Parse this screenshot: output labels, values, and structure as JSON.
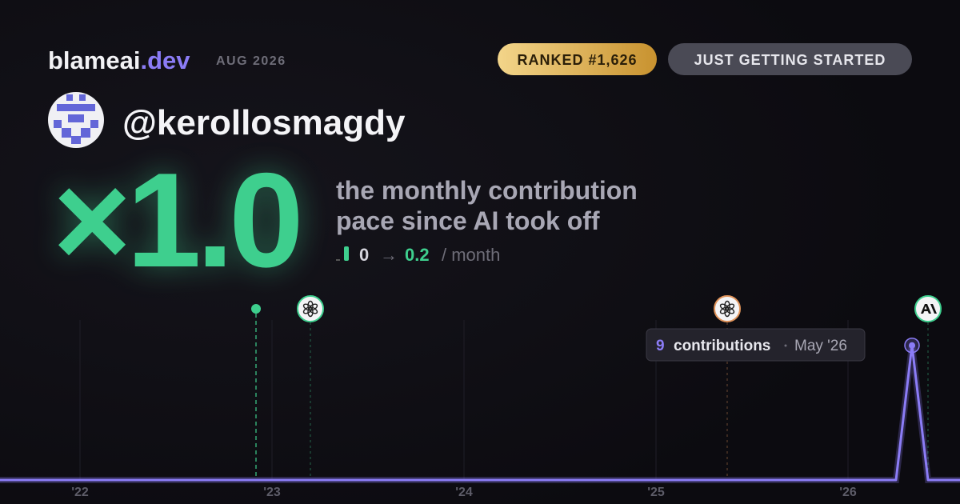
{
  "header": {
    "brand": "blameai",
    "brand_tld": ".dev",
    "period": "AUG 2026",
    "rank_badge": "RANKED #1,626",
    "status_badge": "JUST GETTING STARTED"
  },
  "profile": {
    "username": "@kerollosmagdy"
  },
  "stats": {
    "multiplier": "×1.0",
    "description_lines": [
      "the monthly contribution",
      "pace since AI took off"
    ],
    "before": "0",
    "arrow": "→",
    "after": "0.2",
    "unit": "/ month"
  },
  "chart_data": {
    "type": "line",
    "x": [
      -5,
      51,
      52,
      53,
      55
    ],
    "xlim": [
      -5,
      55
    ],
    "xticks": [
      {
        "value": 0,
        "label": "'22"
      },
      {
        "value": 12,
        "label": "'23"
      },
      {
        "value": 24,
        "label": "'24"
      },
      {
        "value": 36,
        "label": "'25"
      },
      {
        "value": 48,
        "label": "'26"
      }
    ],
    "ylim": [
      0,
      10
    ],
    "series": [
      {
        "color": "#8b7cf6",
        "values": [
          0,
          0,
          9,
          0,
          0
        ]
      }
    ],
    "events": [
      {
        "x": 11,
        "color": "#3ecf8e"
      },
      {
        "x": 14.4,
        "color": "#3ecf8e"
      },
      {
        "x": 40.45,
        "color": "#e0935a"
      },
      {
        "x": 53,
        "color": "#3ecf8e"
      }
    ],
    "tooltip": {
      "value": 9,
      "label": "contributions",
      "date": "May '26"
    }
  }
}
